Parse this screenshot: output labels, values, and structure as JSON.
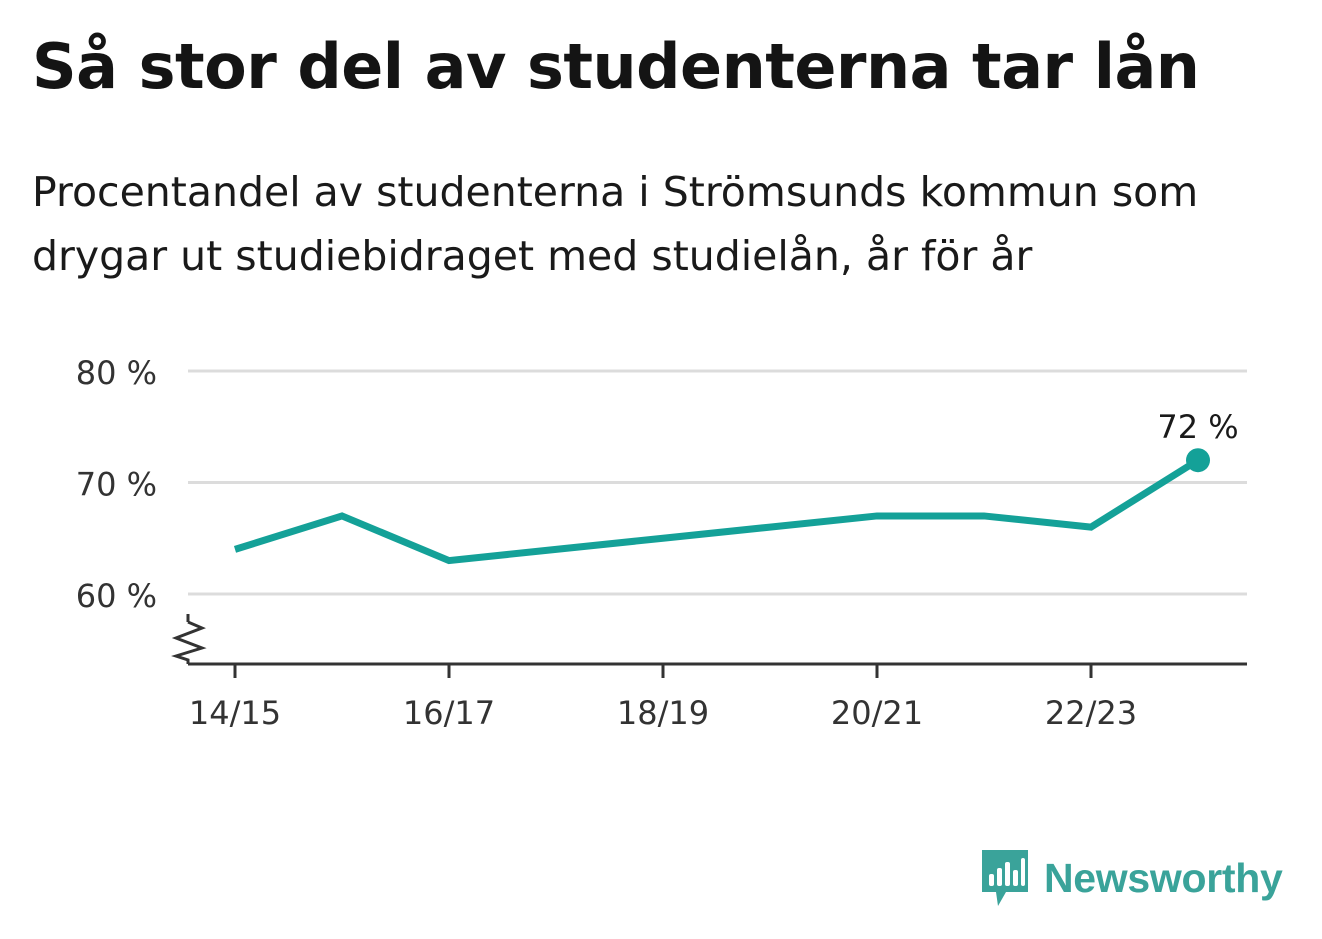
{
  "chart_data": {
    "type": "line",
    "title": "Så stor del av studenterna tar lån",
    "subtitle": "Procentandel av studenterna i Strömsunds kommun som drygar ut studiebidraget med studielån, år för år",
    "x": [
      "14/15",
      "15/16",
      "16/17",
      "17/18",
      "18/19",
      "19/20",
      "20/21",
      "21/22",
      "22/23",
      "23/24"
    ],
    "x_tick_labels": [
      "14/15",
      "16/17",
      "18/19",
      "20/21",
      "22/23"
    ],
    "y_tick_labels": [
      "80 %",
      "70 %",
      "60 %"
    ],
    "series": [
      {
        "values": [
          64,
          67,
          63,
          64,
          65,
          66,
          67,
          67,
          66,
          72
        ]
      }
    ],
    "ylim": [
      53.5,
      80
    ],
    "y_ticks": [
      60,
      70,
      80
    ],
    "end_label": "72 %",
    "grid": true,
    "y_axis_break": true,
    "color": "#14a198"
  },
  "brand": {
    "name": "Newsworthy",
    "color": "#3aa39a"
  }
}
